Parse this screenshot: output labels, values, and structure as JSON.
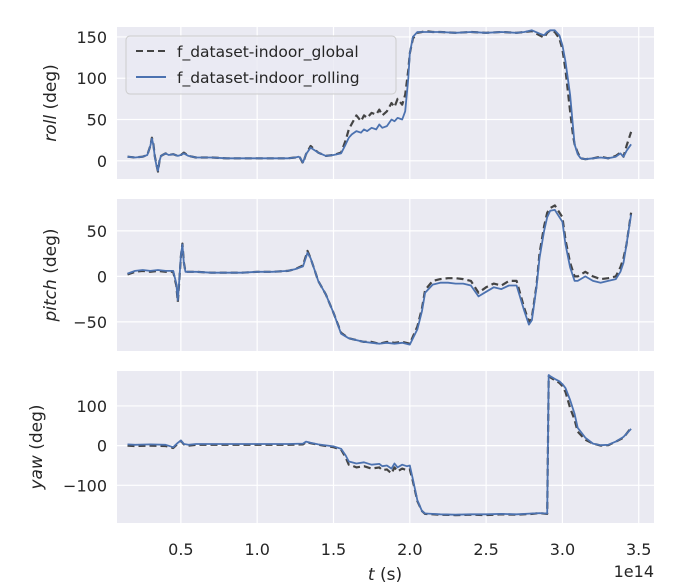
{
  "chart_data": [
    {
      "type": "line",
      "ylabel_italic": "roll",
      "ylabel_rest": " (deg)",
      "ylim": [
        -22,
        162
      ],
      "yticks": [
        0,
        50,
        100,
        150
      ],
      "ytick_labels": [
        "0",
        "50",
        "100",
        "150"
      ],
      "grid": true,
      "legend": "top-left",
      "series": [
        {
          "name": "f_dataset-indoor_global",
          "color": "#444444",
          "style": "dashed",
          "x": [
            0.15,
            0.2,
            0.25,
            0.28,
            0.3,
            0.31,
            0.32,
            0.33,
            0.34,
            0.35,
            0.36,
            0.37,
            0.38,
            0.4,
            0.42,
            0.45,
            0.48,
            0.5,
            0.52,
            0.55,
            0.6,
            0.7,
            0.8,
            0.9,
            1.0,
            1.1,
            1.2,
            1.25,
            1.27,
            1.28,
            1.3,
            1.32,
            1.35,
            1.4,
            1.45,
            1.5,
            1.55,
            1.58,
            1.6,
            1.62,
            1.65,
            1.68,
            1.7,
            1.72,
            1.75,
            1.78,
            1.8,
            1.82,
            1.85,
            1.88,
            1.9,
            1.92,
            1.95,
            1.97,
            1.99,
            2.0,
            2.02,
            2.05,
            2.08,
            2.1,
            2.15,
            2.2,
            2.3,
            2.4,
            2.5,
            2.6,
            2.7,
            2.75,
            2.8,
            2.85,
            2.88,
            2.9,
            2.92,
            2.95,
            2.98,
            3.0,
            3.02,
            3.05,
            3.07,
            3.08,
            3.1,
            3.12,
            3.15,
            3.2,
            3.25,
            3.3,
            3.35,
            3.38,
            3.4,
            3.42,
            3.45
          ],
          "y": [
            5,
            4,
            5,
            7,
            18,
            28,
            20,
            5,
            -5,
            -13,
            0,
            6,
            7,
            9,
            7,
            8,
            6,
            7,
            10,
            6,
            4,
            4,
            3,
            3,
            3,
            3,
            3,
            4,
            5,
            4,
            -3,
            8,
            18,
            10,
            6,
            7,
            10,
            25,
            38,
            45,
            55,
            48,
            55,
            52,
            58,
            56,
            62,
            55,
            60,
            70,
            65,
            75,
            68,
            80,
            110,
            130,
            148,
            155,
            156,
            157,
            156,
            156,
            155,
            156,
            155,
            156,
            155,
            156,
            157,
            152,
            149,
            155,
            158,
            156,
            148,
            135,
            110,
            60,
            30,
            20,
            10,
            3,
            2,
            3,
            5,
            3,
            6,
            10,
            5,
            18,
            35
          ]
        },
        {
          "name": "f_dataset-indoor_rolling",
          "color": "#4c72b0",
          "style": "solid",
          "x": [
            0.15,
            0.2,
            0.25,
            0.28,
            0.3,
            0.31,
            0.32,
            0.33,
            0.34,
            0.35,
            0.36,
            0.37,
            0.38,
            0.4,
            0.42,
            0.45,
            0.48,
            0.5,
            0.52,
            0.55,
            0.6,
            0.7,
            0.8,
            0.9,
            1.0,
            1.1,
            1.2,
            1.25,
            1.27,
            1.28,
            1.3,
            1.32,
            1.35,
            1.4,
            1.45,
            1.5,
            1.55,
            1.58,
            1.6,
            1.62,
            1.65,
            1.68,
            1.7,
            1.72,
            1.75,
            1.78,
            1.8,
            1.82,
            1.85,
            1.88,
            1.9,
            1.92,
            1.95,
            1.97,
            1.99,
            2.0,
            2.02,
            2.05,
            2.08,
            2.1,
            2.15,
            2.2,
            2.3,
            2.4,
            2.5,
            2.6,
            2.7,
            2.75,
            2.8,
            2.85,
            2.88,
            2.9,
            2.92,
            2.95,
            2.98,
            3.0,
            3.02,
            3.05,
            3.07,
            3.08,
            3.1,
            3.12,
            3.15,
            3.2,
            3.25,
            3.3,
            3.35,
            3.38,
            3.4,
            3.42,
            3.45
          ],
          "y": [
            5,
            4,
            5,
            7,
            18,
            27,
            19,
            4,
            -6,
            -12,
            0,
            6,
            7,
            9,
            7,
            8,
            6,
            7,
            9,
            6,
            4,
            4,
            3,
            3,
            3,
            3,
            3,
            4,
            5,
            4,
            -2,
            8,
            16,
            10,
            6,
            7,
            9,
            20,
            28,
            32,
            36,
            34,
            38,
            36,
            40,
            38,
            44,
            40,
            42,
            50,
            48,
            52,
            50,
            60,
            100,
            130,
            150,
            156,
            156,
            156,
            156,
            156,
            155,
            156,
            155,
            156,
            155,
            156,
            158,
            154,
            152,
            156,
            158,
            158,
            152,
            140,
            120,
            80,
            40,
            20,
            8,
            3,
            2,
            3,
            4,
            3,
            5,
            9,
            5,
            12,
            20
          ]
        }
      ]
    },
    {
      "type": "line",
      "ylabel_italic": "pitch",
      "ylabel_rest": " (deg)",
      "ylim": [
        -82,
        85
      ],
      "yticks": [
        -50,
        0,
        50
      ],
      "ytick_labels": [
        "−50",
        "0",
        "50"
      ],
      "grid": true,
      "series": [
        {
          "name": "f_dataset-indoor_global",
          "color": "#444444",
          "style": "dashed",
          "x": [
            0.15,
            0.2,
            0.25,
            0.3,
            0.35,
            0.4,
            0.45,
            0.47,
            0.48,
            0.49,
            0.5,
            0.51,
            0.52,
            0.53,
            0.55,
            0.6,
            0.7,
            0.8,
            0.9,
            1.0,
            1.1,
            1.2,
            1.25,
            1.3,
            1.33,
            1.35,
            1.38,
            1.4,
            1.45,
            1.5,
            1.55,
            1.6,
            1.65,
            1.7,
            1.75,
            1.8,
            1.85,
            1.9,
            1.95,
            2.0,
            2.05,
            2.08,
            2.1,
            2.15,
            2.2,
            2.25,
            2.3,
            2.35,
            2.4,
            2.45,
            2.5,
            2.55,
            2.6,
            2.65,
            2.7,
            2.75,
            2.78,
            2.8,
            2.83,
            2.85,
            2.88,
            2.9,
            2.92,
            2.95,
            3.0,
            3.02,
            3.05,
            3.08,
            3.1,
            3.15,
            3.2,
            3.25,
            3.3,
            3.35,
            3.38,
            3.4,
            3.42,
            3.45
          ],
          "y": [
            2,
            5,
            6,
            5,
            6,
            5,
            5,
            -10,
            -28,
            -5,
            22,
            36,
            15,
            5,
            5,
            5,
            4,
            4,
            4,
            5,
            5,
            6,
            8,
            12,
            28,
            20,
            5,
            -5,
            -20,
            -40,
            -62,
            -68,
            -70,
            -72,
            -72,
            -74,
            -72,
            -73,
            -72,
            -74,
            -55,
            -35,
            -15,
            -5,
            -3,
            -2,
            -2,
            -3,
            -5,
            -18,
            -12,
            -8,
            -10,
            -5,
            -5,
            -35,
            -50,
            -45,
            -10,
            25,
            55,
            70,
            75,
            78,
            65,
            40,
            15,
            0,
            0,
            5,
            0,
            -3,
            -2,
            0,
            10,
            20,
            35,
            70
          ]
        },
        {
          "name": "f_dataset-indoor_rolling",
          "color": "#4c72b0",
          "style": "solid",
          "x": [
            0.15,
            0.2,
            0.25,
            0.3,
            0.35,
            0.4,
            0.45,
            0.47,
            0.48,
            0.49,
            0.5,
            0.51,
            0.52,
            0.53,
            0.55,
            0.6,
            0.7,
            0.8,
            0.9,
            1.0,
            1.1,
            1.2,
            1.25,
            1.3,
            1.33,
            1.35,
            1.38,
            1.4,
            1.45,
            1.5,
            1.55,
            1.6,
            1.65,
            1.7,
            1.75,
            1.8,
            1.85,
            1.9,
            1.95,
            2.0,
            2.05,
            2.08,
            2.1,
            2.15,
            2.2,
            2.25,
            2.3,
            2.35,
            2.4,
            2.45,
            2.5,
            2.55,
            2.6,
            2.65,
            2.7,
            2.75,
            2.78,
            2.8,
            2.83,
            2.85,
            2.88,
            2.9,
            2.92,
            2.95,
            3.0,
            3.02,
            3.05,
            3.08,
            3.1,
            3.15,
            3.2,
            3.25,
            3.3,
            3.35,
            3.38,
            3.4,
            3.42,
            3.45
          ],
          "y": [
            3,
            6,
            7,
            6,
            7,
            6,
            6,
            -8,
            -26,
            -4,
            23,
            35,
            14,
            5,
            5,
            5,
            4,
            4,
            4,
            5,
            5,
            6,
            8,
            11,
            26,
            20,
            5,
            -5,
            -20,
            -40,
            -63,
            -68,
            -70,
            -72,
            -73,
            -74,
            -73,
            -74,
            -73,
            -75,
            -58,
            -38,
            -18,
            -9,
            -7,
            -7,
            -8,
            -8,
            -10,
            -22,
            -17,
            -12,
            -14,
            -10,
            -10,
            -38,
            -53,
            -48,
            -12,
            20,
            50,
            65,
            72,
            73,
            60,
            35,
            10,
            -5,
            -5,
            0,
            -5,
            -7,
            -5,
            -3,
            5,
            15,
            35,
            68
          ]
        }
      ]
    },
    {
      "type": "line",
      "ylabel_italic": "yaw",
      "ylabel_rest": " (deg)",
      "xlabel_italic": "t",
      "xlabel_rest": " (s)",
      "offset_text": "1e14",
      "ylim": [
        -195,
        188
      ],
      "yticks": [
        -100,
        0,
        100
      ],
      "ytick_labels": [
        "−100",
        "0",
        "100"
      ],
      "xlim": [
        0.0815,
        3.6
      ],
      "xticks": [
        0.5,
        1.0,
        1.5,
        2.0,
        2.5,
        3.0,
        3.5
      ],
      "xtick_labels": [
        "0.5",
        "1.0",
        "1.5",
        "2.0",
        "2.5",
        "3.0",
        "3.5"
      ],
      "grid": true,
      "series": [
        {
          "name": "f_dataset-indoor_global",
          "color": "#444444",
          "style": "dashed",
          "x": [
            0.15,
            0.2,
            0.3,
            0.4,
            0.45,
            0.48,
            0.5,
            0.52,
            0.55,
            0.6,
            0.8,
            1.0,
            1.2,
            1.3,
            1.32,
            1.35,
            1.4,
            1.5,
            1.55,
            1.58,
            1.6,
            1.62,
            1.65,
            1.7,
            1.75,
            1.8,
            1.82,
            1.85,
            1.88,
            1.9,
            1.92,
            1.95,
            1.98,
            2.0,
            2.02,
            2.05,
            2.08,
            2.1,
            2.15,
            2.2,
            2.3,
            2.4,
            2.5,
            2.6,
            2.7,
            2.8,
            2.85,
            2.9,
            2.91,
            2.92,
            2.95,
            2.98,
            3.0,
            3.02,
            3.05,
            3.08,
            3.1,
            3.15,
            3.2,
            3.25,
            3.3,
            3.35,
            3.4,
            3.45
          ],
          "y": [
            0,
            -1,
            0,
            -1,
            -6,
            5,
            12,
            3,
            0,
            2,
            2,
            2,
            2,
            3,
            9,
            6,
            2,
            -4,
            -10,
            -30,
            -48,
            -50,
            -55,
            -52,
            -58,
            -55,
            -62,
            -60,
            -70,
            -55,
            -65,
            -58,
            -62,
            -60,
            -90,
            -140,
            -165,
            -172,
            -173,
            -174,
            -175,
            -174,
            -175,
            -173,
            -174,
            -172,
            -170,
            -172,
            175,
            172,
            165,
            158,
            150,
            135,
            95,
            65,
            35,
            15,
            5,
            0,
            1,
            10,
            20,
            45
          ]
        },
        {
          "name": "f_dataset-indoor_rolling",
          "color": "#4c72b0",
          "style": "solid",
          "x": [
            0.15,
            0.2,
            0.3,
            0.4,
            0.45,
            0.48,
            0.5,
            0.52,
            0.55,
            0.6,
            0.8,
            1.0,
            1.2,
            1.3,
            1.32,
            1.35,
            1.4,
            1.5,
            1.55,
            1.58,
            1.6,
            1.62,
            1.65,
            1.7,
            1.75,
            1.8,
            1.82,
            1.85,
            1.88,
            1.9,
            1.92,
            1.95,
            1.98,
            2.0,
            2.02,
            2.05,
            2.08,
            2.1,
            2.15,
            2.2,
            2.3,
            2.4,
            2.5,
            2.6,
            2.7,
            2.8,
            2.85,
            2.9,
            2.91,
            2.92,
            2.95,
            2.98,
            3.0,
            3.02,
            3.05,
            3.08,
            3.1,
            3.15,
            3.2,
            3.25,
            3.3,
            3.35,
            3.4,
            3.45
          ],
          "y": [
            3,
            2,
            3,
            2,
            -4,
            7,
            13,
            4,
            2,
            4,
            4,
            4,
            4,
            5,
            10,
            7,
            3,
            -2,
            -8,
            -25,
            -40,
            -42,
            -45,
            -42,
            -48,
            -46,
            -52,
            -50,
            -58,
            -45,
            -55,
            -48,
            -52,
            -50,
            -85,
            -138,
            -165,
            -171,
            -172,
            -173,
            -174,
            -173,
            -173,
            -172,
            -173,
            -171,
            -170,
            -171,
            178,
            175,
            168,
            162,
            155,
            145,
            115,
            80,
            45,
            20,
            5,
            1,
            2,
            10,
            22,
            42
          ]
        }
      ]
    }
  ]
}
